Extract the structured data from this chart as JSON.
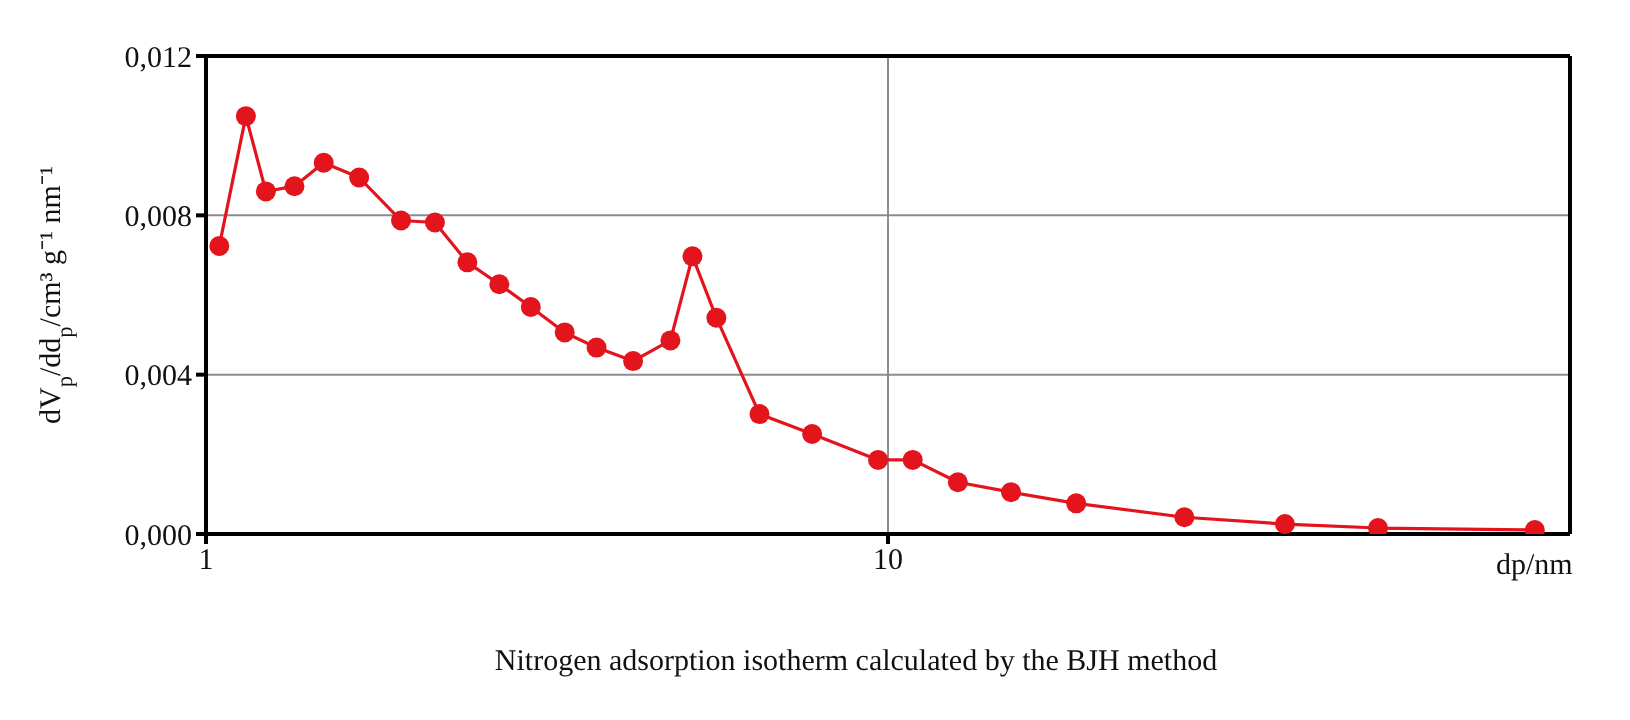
{
  "chart_data": {
    "type": "line",
    "title": "Nitrogen adsorption isotherm calculated by the BJH method",
    "xlabel": "dp/nm",
    "ylabel": "dV$_{p}$/dd$_{p}$/cm³ g⁻¹ nm⁻¹",
    "log": "x",
    "xlim": [
      1,
      100
    ],
    "xticks": [
      1,
      10
    ],
    "ylim": [
      0,
      0.012
    ],
    "yticks": [
      {
        "value": 0,
        "label": "0,000"
      },
      {
        "value": 0.004,
        "label": "0,004"
      },
      {
        "value": 0.008,
        "label": "0,008"
      },
      {
        "value": 0.012,
        "label": "0,012"
      }
    ],
    "grid": true,
    "marker": "circle",
    "line_style": "solid",
    "x": [
      1.046,
      1.144,
      1.224,
      1.348,
      1.488,
      1.677,
      1.932,
      2.166,
      2.417,
      2.692,
      2.994,
      3.357,
      3.738,
      4.229,
      4.797,
      5.168,
      5.602,
      6.48,
      7.74,
      9.67,
      10.87,
      12.66,
      15.15,
      18.88,
      27.2,
      38.2,
      52.3,
      88.8
    ],
    "series": [
      {
        "color": "#e3141c",
        "values": [
          0.00723,
          0.01049,
          0.0086,
          0.00873,
          0.00932,
          0.00895,
          0.00787,
          0.00782,
          0.00682,
          0.00627,
          0.0057,
          0.00506,
          0.00468,
          0.00434,
          0.00486,
          0.00697,
          0.00543,
          0.00301,
          0.00251,
          0.00186,
          0.00186,
          0.0013,
          0.00105,
          0.00077,
          0.00042,
          0.00025,
          0.00015,
          0.0001
        ]
      }
    ]
  }
}
